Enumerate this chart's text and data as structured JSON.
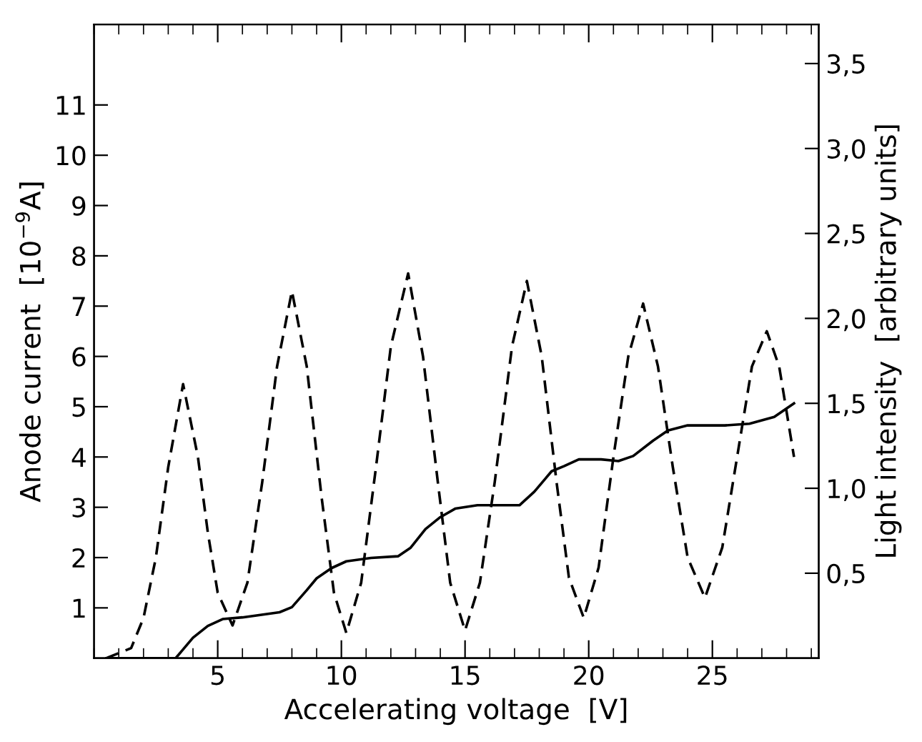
{
  "chart_data": {
    "type": "line",
    "xlabel": "Accelerating voltage  [V]",
    "ylabel": "Anode current  [10$^{−9}$A]",
    "y2label": "Light intensity  [arbitrary units]",
    "xlim": [
      0,
      29.3
    ],
    "xticks": [
      5,
      10,
      15,
      20,
      25
    ],
    "ylim": [
      0,
      12.6
    ],
    "yticks": [
      1,
      2,
      3,
      4,
      5,
      6,
      7,
      8,
      9,
      10,
      11
    ],
    "y2lim": [
      0,
      3.73
    ],
    "y2ticks": [
      {
        "value": 0.5,
        "label": "0,5"
      },
      {
        "value": 1.0,
        "label": "1,0"
      },
      {
        "value": 1.5,
        "label": "1,5"
      },
      {
        "value": 2.0,
        "label": "2,0"
      },
      {
        "value": 2.5,
        "label": "2,5"
      },
      {
        "value": 3.0,
        "label": "3,0"
      },
      {
        "value": 3.5,
        "label": "3,5"
      }
    ],
    "grid": false,
    "marker": "none",
    "series": [
      {
        "color": "#000000",
        "line_style": "dashed",
        "x": [
          0.5,
          1.5,
          2.0,
          2.5,
          3.0,
          3.6,
          4.2,
          4.6,
          5.0,
          5.6,
          6.2,
          6.8,
          7.4,
          8.0,
          8.6,
          9.2,
          9.7,
          10.2,
          10.8,
          11.4,
          12.0,
          12.7,
          13.3,
          13.9,
          14.4,
          15.0,
          15.6,
          16.2,
          16.9,
          17.5,
          18.1,
          18.7,
          19.2,
          19.8,
          20.4,
          21.0,
          21.6,
          22.2,
          22.8,
          23.4,
          24.0,
          24.7,
          25.4,
          26.0,
          26.6,
          27.2,
          27.7,
          28.3
        ],
        "values": [
          0,
          0.2,
          0.8,
          2.0,
          3.8,
          5.45,
          4.0,
          2.5,
          1.3,
          0.65,
          1.5,
          3.5,
          5.8,
          7.3,
          5.8,
          3.2,
          1.3,
          0.5,
          1.5,
          3.8,
          6.2,
          7.65,
          6.0,
          3.5,
          1.5,
          0.55,
          1.5,
          3.5,
          6.2,
          7.5,
          6.0,
          3.5,
          1.6,
          0.8,
          1.8,
          4.0,
          6.0,
          7.05,
          5.8,
          3.8,
          2.0,
          1.2,
          2.2,
          4.0,
          5.8,
          6.5,
          5.8,
          4.0
        ]
      },
      {
        "color": "#000000",
        "line_style": "solid",
        "axis": "y2",
        "x": [
          0.5,
          3.3,
          4.0,
          4.6,
          5.2,
          6.0,
          7.5,
          8.0,
          8.6,
          9.0,
          9.6,
          10.2,
          11.2,
          12.3,
          12.8,
          13.4,
          14.0,
          14.6,
          15.5,
          16.5,
          17.2,
          17.8,
          18.5,
          19.0,
          19.6,
          20.5,
          21.2,
          21.8,
          22.6,
          23.2,
          24.0,
          25.5,
          26.5,
          27.5,
          28.3
        ],
        "values": [
          0,
          0,
          0.12,
          0.19,
          0.23,
          0.24,
          0.27,
          0.3,
          0.4,
          0.47,
          0.53,
          0.57,
          0.59,
          0.6,
          0.65,
          0.76,
          0.83,
          0.88,
          0.9,
          0.9,
          0.9,
          0.98,
          1.1,
          1.13,
          1.17,
          1.17,
          1.16,
          1.19,
          1.28,
          1.34,
          1.37,
          1.37,
          1.38,
          1.42,
          1.5
        ]
      }
    ]
  }
}
